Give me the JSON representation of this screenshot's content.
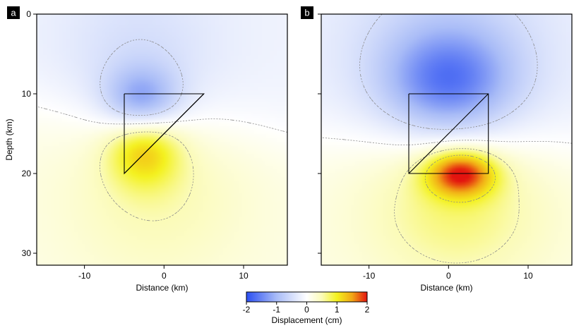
{
  "chart_data": [
    {
      "type": "heatmap",
      "panel_label": "a",
      "title": "",
      "xlabel": "Distance (km)",
      "ylabel": "Depth (km)",
      "xlim": [
        -16,
        15.5
      ],
      "ylim": [
        31.5,
        0
      ],
      "x_ticks": [
        -10,
        0,
        10
      ],
      "y_ticks": [
        0,
        10,
        20,
        30
      ],
      "grid": false,
      "fault_outline": [
        [
          -5,
          10
        ],
        [
          5,
          10
        ],
        [
          -5,
          20
        ],
        [
          -5,
          10
        ]
      ],
      "fault_diagonal": [
        [
          -5,
          20
        ],
        [
          5,
          10
        ]
      ],
      "sources": [
        {
          "x": -2.8,
          "depth": 10.8,
          "sx": 3.2,
          "sz": 2.8,
          "amp": -1.05
        },
        {
          "x": -2.5,
          "depth": 17.0,
          "sx": 3.2,
          "sz": 3.2,
          "amp": 0.95
        },
        {
          "x": -3.0,
          "depth": 6.0,
          "sx": 7.0,
          "sz": 7.0,
          "amp": -0.35
        },
        {
          "x": -1.0,
          "depth": 22.0,
          "sx": 8.0,
          "sz": 8.0,
          "amp": 0.35
        }
      ],
      "zero_tilt": 0.14,
      "zero_depth": 13.3,
      "contour_levels": [
        -0.5,
        0,
        0.5
      ]
    },
    {
      "type": "heatmap",
      "panel_label": "b",
      "title": "",
      "xlabel": "Distance (km)",
      "ylabel": "",
      "xlim": [
        -16,
        15.5
      ],
      "ylim": [
        31.5,
        0
      ],
      "x_ticks": [
        -10,
        0,
        10
      ],
      "y_ticks": [
        0,
        10,
        20,
        30
      ],
      "grid": false,
      "fault_outline": [
        [
          -5,
          10
        ],
        [
          5,
          10
        ],
        [
          5,
          20
        ],
        [
          -5,
          20
        ],
        [
          -5,
          10
        ]
      ],
      "fault_diagonal": [
        [
          -5,
          20
        ],
        [
          5,
          10
        ]
      ],
      "sources": [
        {
          "x": 0.0,
          "depth": 8.5,
          "sx": 5.5,
          "sz": 4.5,
          "amp": -1.2
        },
        {
          "x": 1.5,
          "depth": 20.0,
          "sx": 3.0,
          "sz": 2.0,
          "amp": 1.6
        },
        {
          "x": 1.0,
          "depth": 24.0,
          "sx": 8.0,
          "sz": 7.0,
          "amp": 0.55
        },
        {
          "x": 0.0,
          "depth": 4.0,
          "sx": 9.0,
          "sz": 8.0,
          "amp": -0.45
        }
      ],
      "zero_tilt": 0.05,
      "zero_depth": 16.0,
      "contour_levels": [
        -0.5,
        0,
        0.5,
        1.0
      ]
    }
  ],
  "colorbar": {
    "label": "Displacement (cm)",
    "min": -2,
    "max": 2,
    "ticks": [
      -2,
      -1,
      0,
      1,
      2
    ],
    "stops": [
      {
        "v": -2,
        "color": "#2b4ff2"
      },
      {
        "v": -1,
        "color": "#a9bcf7"
      },
      {
        "v": 0,
        "color": "#ffffff"
      },
      {
        "v": 0.5,
        "color": "#fbfbb8"
      },
      {
        "v": 1,
        "color": "#f4f21e"
      },
      {
        "v": 1.5,
        "color": "#f2a716"
      },
      {
        "v": 2,
        "color": "#e3130f"
      }
    ]
  },
  "colors": {
    "contour": "#8a8a8a",
    "fault": "#000000",
    "label_box": "#000000"
  }
}
